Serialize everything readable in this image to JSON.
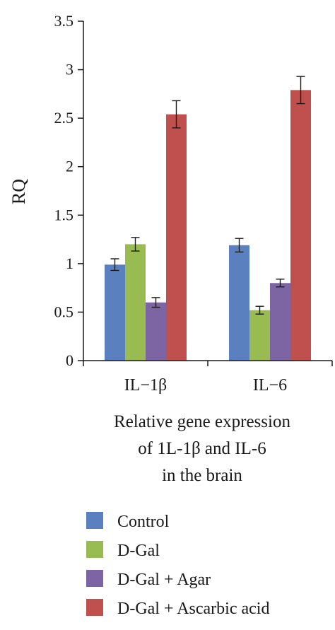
{
  "chart_data": {
    "type": "bar",
    "categories": [
      "IL−1β",
      "IL−6"
    ],
    "series": [
      {
        "name": "Control",
        "color": "#5b80bf",
        "values": [
          0.99,
          1.19
        ],
        "errors": [
          0.06,
          0.07
        ]
      },
      {
        "name": "D-Gal",
        "color": "#98bb52",
        "values": [
          1.2,
          0.52
        ],
        "errors": [
          0.07,
          0.04
        ]
      },
      {
        "name": "D-Gal + Agar",
        "color": "#7d64a3",
        "values": [
          0.6,
          0.8
        ],
        "errors": [
          0.05,
          0.04
        ]
      },
      {
        "name": "D-Gal + Ascarbic acid",
        "color": "#c0504d",
        "values": [
          2.54,
          2.79
        ],
        "errors": [
          0.14,
          0.14
        ]
      }
    ],
    "title": "",
    "ylabel": "RQ",
    "xlabel_lines": [
      "Relative gene expression",
      "of 1L-1β and IL-6",
      "in the brain"
    ],
    "ylim": [
      0,
      3.5
    ],
    "yticks": [
      "0",
      "0.5",
      "1",
      "1.5",
      "2",
      "2.5",
      "3",
      "3.5"
    ],
    "grid": false,
    "legend_position": "bottom"
  }
}
